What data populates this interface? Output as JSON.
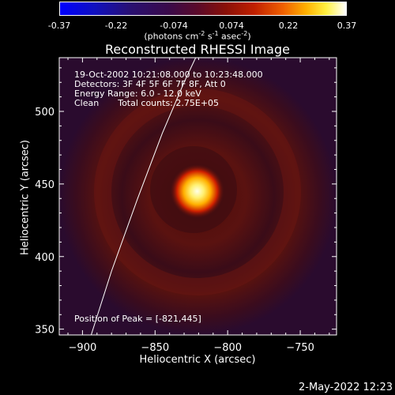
{
  "colorbar": {
    "ticks": [
      "-0.37",
      "-0.22",
      "-0.074",
      "0.074",
      "0.22",
      "0.37"
    ],
    "unit_main": "(photons cm",
    "unit_sup1": "-2",
    "unit_mid1": " s",
    "unit_sup2": "-1",
    "unit_mid2": " asec",
    "unit_sup3": "-2",
    "unit_end": ")"
  },
  "chart_data": {
    "type": "heatmap",
    "title": "Reconstructed RHESSI Image",
    "xlabel": "Heliocentric X (arcsec)",
    "ylabel": "Heliocentric Y (arcsec)",
    "xlim": [
      -916,
      -725
    ],
    "ylim": [
      346,
      537
    ],
    "x_ticks": [
      -900,
      -850,
      -800,
      -750
    ],
    "y_ticks": [
      350,
      400,
      450,
      500
    ],
    "x_tick_labels": [
      "−900",
      "−850",
      "−800",
      "−750"
    ],
    "y_tick_labels": [
      "350",
      "400",
      "450",
      "500"
    ],
    "value_range": [
      -0.37,
      0.37
    ],
    "peak": {
      "x": -821,
      "y": 445
    },
    "limb_curve": [
      [
        -894,
        346
      ],
      [
        -880,
        390
      ],
      [
        -862,
        440
      ],
      [
        -845,
        485
      ],
      [
        -830,
        520
      ],
      [
        -822,
        537
      ]
    ]
  },
  "info": {
    "line1": "19-Oct-2002 10:21:08.000 to 10:23:48.000",
    "line2": "Detectors: 3F 4F 5F 6F 7F 8F, Att 0",
    "line3": "Energy Range: 6.0 - 12.0 keV",
    "line4_a": "Clean",
    "line4_b": "Total counts: 2.75E+05",
    "peak_text": "Position of Peak = [-821,445]"
  },
  "footer": {
    "timestamp": "2-May-2022 12:23"
  }
}
